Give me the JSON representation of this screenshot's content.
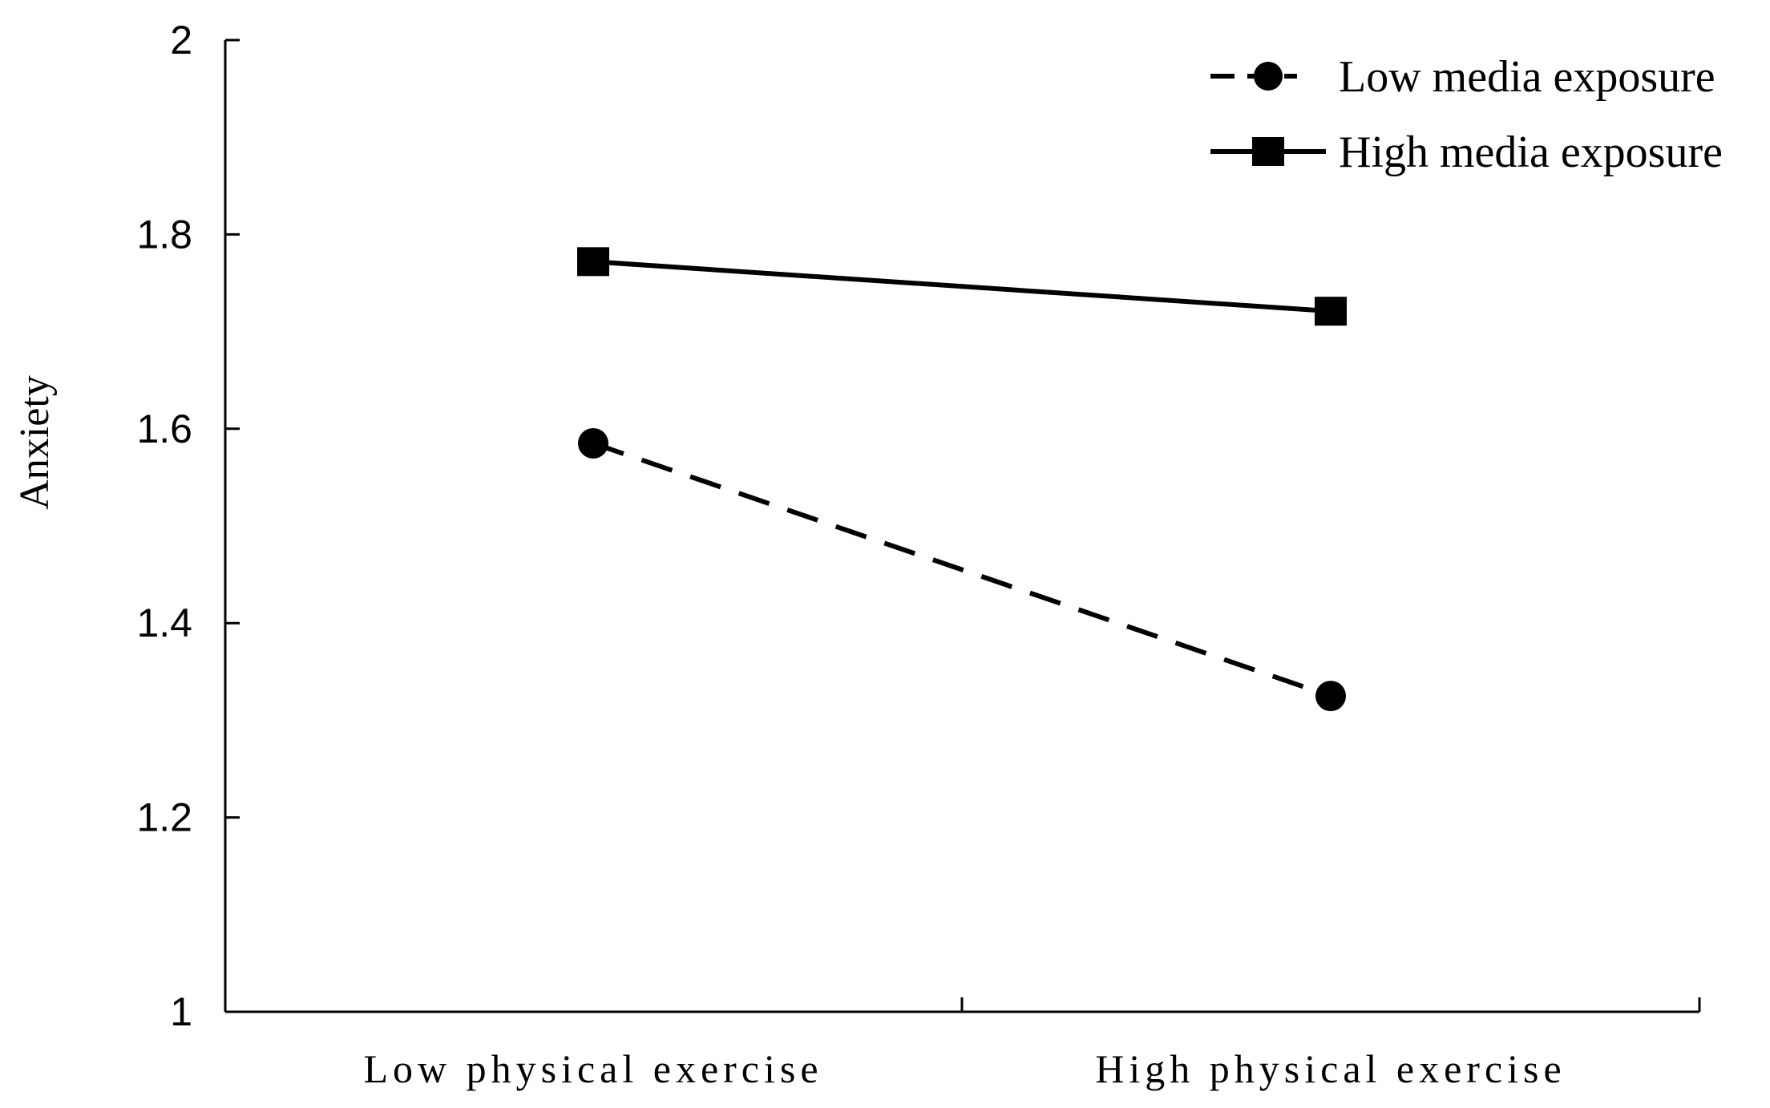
{
  "chart_data": {
    "type": "line",
    "title": "",
    "xlabel": "",
    "ylabel": "Anxiety",
    "categories": [
      "Low physical exercise",
      "High physical exercise"
    ],
    "ylim": [
      1,
      2
    ],
    "yticks": [
      1,
      1.2,
      1.4,
      1.6,
      1.8,
      2
    ],
    "ytick_labels": [
      "1",
      "1.2",
      "1.4",
      "1.6",
      "1.8",
      "2"
    ],
    "grid": false,
    "legend_position": "top-right",
    "series": [
      {
        "name": "Low media exposure",
        "values": [
          1.585,
          1.325
        ],
        "line_style": "dashed",
        "marker": "circle",
        "color": "#000000"
      },
      {
        "name": "High media exposure",
        "values": [
          1.772,
          1.721
        ],
        "line_style": "solid",
        "marker": "square",
        "color": "#000000"
      }
    ]
  }
}
